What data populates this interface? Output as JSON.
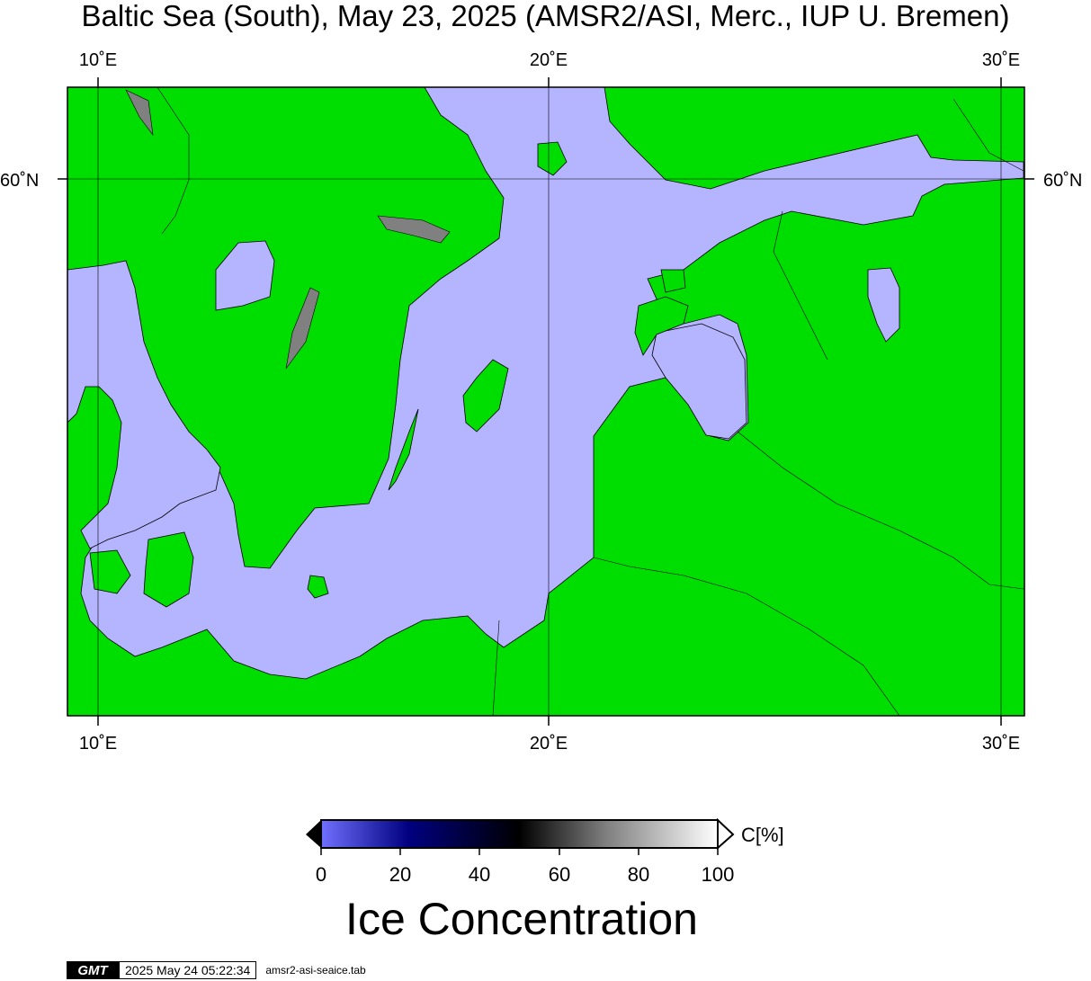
{
  "map": {
    "title": "Baltic Sea (South), May 23, 2025 (AMSR2/ASI, Merc., IUP U. Bremen)",
    "lon_labels": [
      "10˚E",
      "20˚E",
      "30˚E"
    ],
    "lat_labels": [
      "60˚N",
      "60˚N"
    ],
    "colors": {
      "land": "#00dd00",
      "open_water": "#b4b4ff",
      "coastline": "#000000",
      "gridline": "#000000",
      "lake": "#808080"
    }
  },
  "colorbar": {
    "unit": "C[%]",
    "ticks": [
      "0",
      "20",
      "40",
      "60",
      "80",
      "100"
    ],
    "title": "Ice Concentration",
    "gradient": [
      "#7070ff",
      "#000080",
      "#000000",
      "#808080",
      "#ffffff"
    ]
  },
  "footer": {
    "logo": "GMT",
    "timestamp": "2025 May 24 05:22:34",
    "script": "amsr2-asi-seaice.tab"
  }
}
